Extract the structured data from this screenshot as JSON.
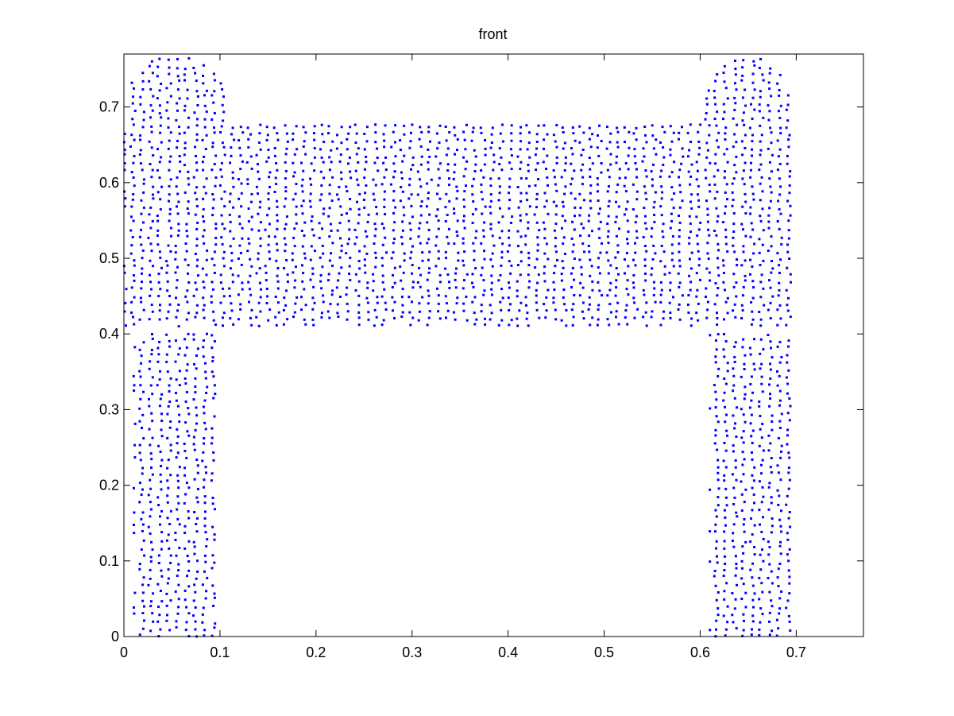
{
  "chart_data": {
    "type": "scatter",
    "title": "front",
    "xlabel": "",
    "ylabel": "",
    "xlim": [
      0,
      0.77
    ],
    "ylim": [
      0,
      0.77
    ],
    "xticks": [
      0,
      0.1,
      0.2,
      0.3,
      0.4,
      0.5,
      0.6,
      0.7
    ],
    "yticks": [
      0,
      0.1,
      0.2,
      0.3,
      0.4,
      0.5,
      0.6,
      0.7
    ],
    "xtick_labels": [
      "0",
      "0.1",
      "0.2",
      "0.3",
      "0.4",
      "0.5",
      "0.6",
      "0.7"
    ],
    "ytick_labels": [
      "0",
      "0.1",
      "0.2",
      "0.3",
      "0.4",
      "0.5",
      "0.6",
      "0.7"
    ],
    "grid": false,
    "marker": "dot",
    "marker_color": "#0000ff",
    "series": [
      {
        "regions": [
          {
            "part": "left-leg",
            "x": [
              0.01,
              0.095
            ],
            "y": [
              0.0,
              0.4
            ]
          },
          {
            "part": "right-leg",
            "x": [
              0.61,
              0.695
            ],
            "y": [
              0.0,
              0.4
            ]
          },
          {
            "part": "top-bar",
            "x": [
              0.0,
              0.695
            ],
            "y": [
              0.41,
              0.68
            ]
          },
          {
            "part": "left-lobe",
            "center": [
              0.055,
              0.69
            ],
            "radius": [
              0.055,
              0.08
            ]
          },
          {
            "part": "right-lobe",
            "center": [
              0.65,
              0.69
            ],
            "radius": [
              0.045,
              0.08
            ]
          }
        ]
      }
    ]
  }
}
